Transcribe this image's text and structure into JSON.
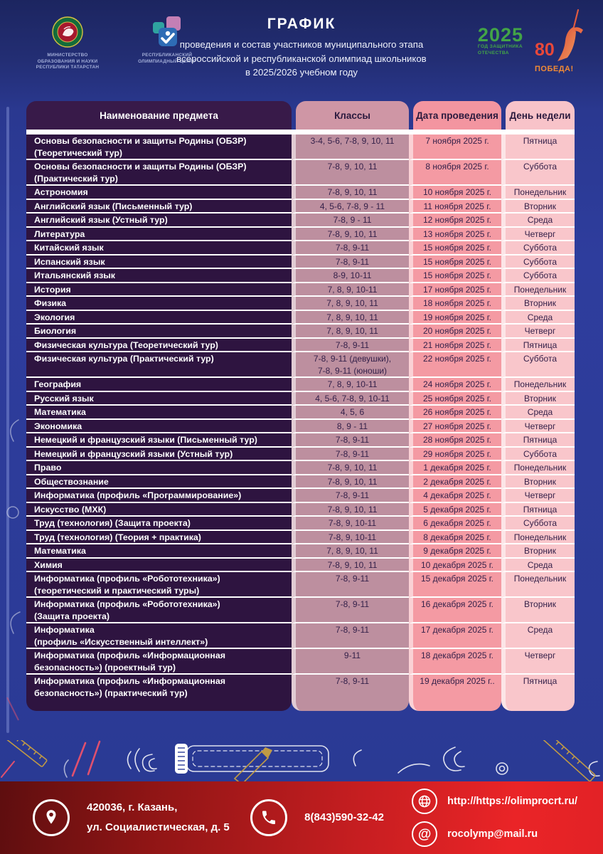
{
  "header": {
    "title": "ГРАФИК",
    "subtitle": "проведения и состав участников муниципального этапа\nвсероссийской и республиканской олимпиад школьников\nв 2025/2026 учебном году",
    "ministry_caption": "МИНИСТЕРСТВО\nОБРАЗОВАНИЯ И НАУКИ\nРЕСПУБЛИКИ ТАТАРСТАН",
    "olymp_center_caption": "РЕСПУБЛИКАНСКИЙ\nОЛИМПИАДНЫЙ ЦЕНТР",
    "year_logo": {
      "year": "2025",
      "caption": "ГОД ЗАЩИТНИКА\nОТЕЧЕСТВА"
    },
    "victory_logo": {
      "number": "80",
      "label": "ПОБЕДА!"
    }
  },
  "table": {
    "columns": [
      "Наименование предмета",
      "Классы",
      "Дата проведения",
      "День недели"
    ],
    "rows": [
      {
        "subject": "Основы безопасности и защиты Родины (ОБЗР)\n(Теоретический тур)",
        "classes": "3-4, 5-6, 7-8, 9, 10, 11",
        "date": "7 ноября 2025 г.",
        "day": "Пятница"
      },
      {
        "subject": "Основы безопасности и защиты Родины (ОБЗР)\n(Практический тур)",
        "classes": "7-8, 9, 10, 11",
        "date": "8 ноября 2025 г.",
        "day": "Суббота"
      },
      {
        "subject": "Астрономия",
        "classes": "7-8, 9, 10, 11",
        "date": "10 ноября 2025 г.",
        "day": "Понедельник"
      },
      {
        "subject": "Английский язык (Письменный тур)",
        "classes": "4, 5-6, 7-8, 9 - 11",
        "date": "11 ноября 2025 г.",
        "day": "Вторник"
      },
      {
        "subject": "Английский язык (Устный тур)",
        "classes": "7-8, 9 - 11",
        "date": "12 ноября 2025 г.",
        "day": "Среда"
      },
      {
        "subject": "Литература",
        "classes": "7-8, 9, 10, 11",
        "date": "13 ноября 2025 г.",
        "day": "Четверг"
      },
      {
        "subject": "Китайский язык",
        "classes": "7-8, 9-11",
        "date": "15 ноября 2025 г.",
        "day": "Суббота"
      },
      {
        "subject": "Испанский язык",
        "classes": "7-8, 9-11",
        "date": "15 ноября 2025 г.",
        "day": "Суббота"
      },
      {
        "subject": "Итальянский язык",
        "classes": "8-9, 10-11",
        "date": "15 ноября 2025 г.",
        "day": "Суббота"
      },
      {
        "subject": "История",
        "classes": "7, 8, 9, 10-11",
        "date": "17 ноября 2025 г.",
        "day": "Понедельник"
      },
      {
        "subject": "Физика",
        "classes": "7, 8, 9, 10, 11",
        "date": "18 ноября 2025 г.",
        "day": "Вторник"
      },
      {
        "subject": "Экология",
        "classes": "7, 8, 9, 10, 11",
        "date": "19 ноября 2025 г.",
        "day": "Среда"
      },
      {
        "subject": "Биология",
        "classes": "7, 8, 9, 10, 11",
        "date": "20 ноября 2025 г.",
        "day": "Четверг"
      },
      {
        "subject": "Физическая культура (Теоретический тур)",
        "classes": "7-8, 9-11",
        "date": "21 ноября 2025 г.",
        "day": "Пятница"
      },
      {
        "subject": "Физическая культура (Практический тур)",
        "classes": "7-8, 9-11 (девушки),\n7-8, 9-11 (юноши)",
        "date": "22 ноября 2025 г.",
        "day": "Суббота"
      },
      {
        "subject": "География",
        "classes": "7, 8, 9, 10-11",
        "date": "24 ноября 2025 г.",
        "day": "Понедельник"
      },
      {
        "subject": "Русский язык",
        "classes": "4, 5-6, 7-8, 9, 10-11",
        "date": "25 ноября 2025 г.",
        "day": "Вторник"
      },
      {
        "subject": "Математика",
        "classes": "4, 5, 6",
        "date": "26 ноября 2025 г.",
        "day": "Среда"
      },
      {
        "subject": "Экономика",
        "classes": "8, 9 - 11",
        "date": "27 ноября 2025 г.",
        "day": "Четверг"
      },
      {
        "subject": "Немецкий и французский языки (Письменный тур)",
        "classes": "7-8, 9-11",
        "date": "28 ноября 2025 г.",
        "day": "Пятница"
      },
      {
        "subject": "Немецкий и французский языки (Устный тур)",
        "classes": "7-8, 9-11",
        "date": "29 ноября 2025 г.",
        "day": "Суббота"
      },
      {
        "subject": "Право",
        "classes": "7-8, 9, 10, 11",
        "date": "1 декабря 2025 г.",
        "day": "Понедельник"
      },
      {
        "subject": "Обществознание",
        "classes": "7-8, 9, 10, 11",
        "date": "2 декабря 2025 г.",
        "day": "Вторник"
      },
      {
        "subject": "Информатика (профиль «Программирование»)",
        "classes": "7-8, 9-11",
        "date": "4 декабря 2025 г.",
        "day": "Четверг"
      },
      {
        "subject": "Искусство (МХК)",
        "classes": "7-8, 9, 10, 11",
        "date": "5 декабря 2025 г.",
        "day": "Пятница"
      },
      {
        "subject": "Труд (технология) (Защита проекта)",
        "classes": "7-8, 9, 10-11",
        "date": "6 декабря 2025 г.",
        "day": "Суббота"
      },
      {
        "subject": "Труд (технология) (Теория + практика)",
        "classes": "7-8, 9, 10-11",
        "date": "8 декабря 2025 г.",
        "day": "Понедельник"
      },
      {
        "subject": "Математика",
        "classes": "7, 8, 9, 10, 11",
        "date": "9 декабря 2025 г.",
        "day": "Вторник"
      },
      {
        "subject": "Химия",
        "classes": "7-8, 9, 10, 11",
        "date": "10 декабря 2025 г.",
        "day": "Среда"
      },
      {
        "subject": "Информатика (профиль «Робототехника»)\n(теоретический и практический туры)",
        "classes": "7-8, 9-11",
        "date": "15 декабря 2025 г.",
        "day": "Понедельник"
      },
      {
        "subject": "Информатика (профиль «Робототехника»)\n(Защита проекта)",
        "classes": "7-8, 9-11",
        "date": "16 декабря 2025 г.",
        "day": "Вторник"
      },
      {
        "subject": "Информатика\n(профиль «Искусственный интеллект»)",
        "classes": "7-8, 9-11",
        "date": "17 декабря 2025 г.",
        "day": "Среда"
      },
      {
        "subject": "Информатика  (профиль «Информационная\nбезопасность») (проектный тур)",
        "classes": "9-11",
        "date": "18 декабря 2025 г.",
        "day": "Четверг"
      },
      {
        "subject": "Информатика  (профиль «Информационная\nбезопасность») (практический тур)",
        "classes": "7-8, 9-11",
        "date": "19 декабря 2025 г..",
        "day": "Пятница"
      }
    ]
  },
  "footer": {
    "address": "420036, г. Казань,\nул. Социалистическая, д. 5",
    "phone": "8(843)590-32-42",
    "website": "http://https://olimprocrt.ru/",
    "email": "rocolymp@mail.ru",
    "at_glyph": "@"
  },
  "icons": [
    "ministry-emblem-icon",
    "olympiad-center-icon",
    "victory-statue-icon",
    "location-pin-icon",
    "phone-icon",
    "globe-icon",
    "at-icon"
  ],
  "colors": {
    "page_blue": "#2c3b97",
    "header_navy": "#1c2560",
    "subject_col": "#2e1440",
    "classes_col": "#bd8f9f",
    "date_col": "#f49aa3",
    "day_col": "#f9c6cb",
    "footer_red": "#c71e21",
    "year_green": "#43a447",
    "victory_red": "#e8483a",
    "victory_orange": "#f18a35"
  }
}
